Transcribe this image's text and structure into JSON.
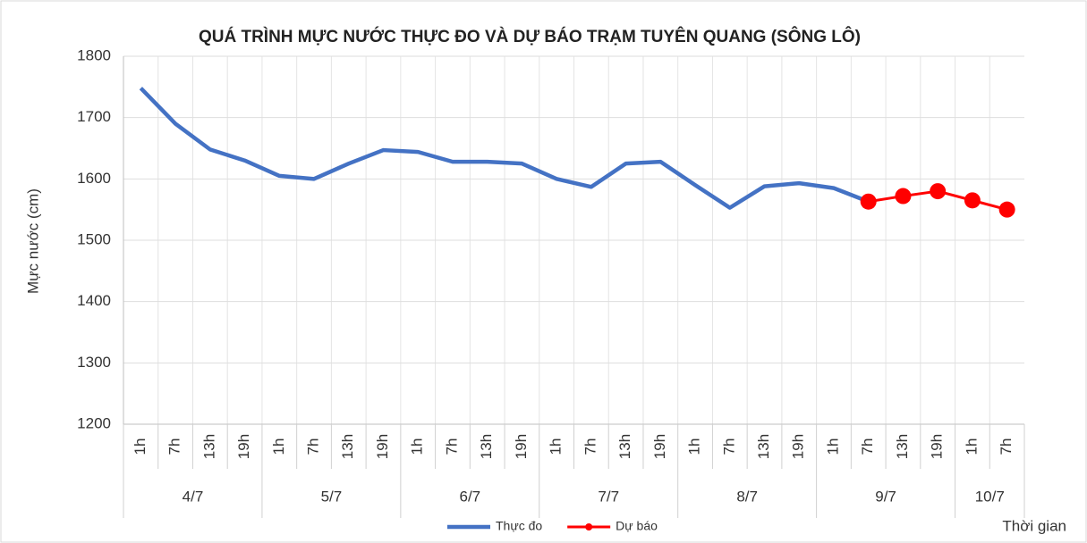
{
  "chart_data": {
    "type": "line",
    "title": "QUÁ TRÌNH MỰC NƯỚC THỰC ĐO VÀ DỰ BÁO TRẠM TUYÊN QUANG (SÔNG LÔ)",
    "ylabel": "Mực nước (cm)",
    "xlabel": "Thời gian",
    "groups": [
      {
        "name": "4/7",
        "categories": [
          "1h",
          "7h",
          "13h",
          "19h"
        ]
      },
      {
        "name": "5/7",
        "categories": [
          "1h",
          "7h",
          "13h",
          "19h"
        ]
      },
      {
        "name": "6/7",
        "categories": [
          "1h",
          "7h",
          "13h",
          "19h"
        ]
      },
      {
        "name": "7/7",
        "categories": [
          "1h",
          "7h",
          "13h",
          "19h"
        ]
      },
      {
        "name": "8/7",
        "categories": [
          "1h",
          "7h",
          "13h",
          "19h"
        ]
      },
      {
        "name": "9/7",
        "categories": [
          "1h",
          "7h",
          "13h",
          "19h"
        ]
      },
      {
        "name": "10/7",
        "categories": [
          "1h",
          "7h"
        ]
      }
    ],
    "series": [
      {
        "name": "Thực đo",
        "color": "#4472c4",
        "markers": false,
        "values": [
          1748,
          1690,
          1648,
          1630,
          1605,
          1600,
          1625,
          1647,
          1644,
          1628,
          1628,
          1625,
          1600,
          1587,
          1625,
          1628,
          1590,
          1553,
          1588,
          1593,
          1585,
          1563,
          null,
          null,
          null,
          null
        ]
      },
      {
        "name": "Dự báo",
        "color": "#ff0000",
        "markers": true,
        "values": [
          null,
          null,
          null,
          null,
          null,
          null,
          null,
          null,
          null,
          null,
          null,
          null,
          null,
          null,
          null,
          null,
          null,
          null,
          null,
          null,
          null,
          1563,
          1572,
          1580,
          1565,
          1550
        ]
      }
    ],
    "ylim": [
      1200,
      1800
    ],
    "yticks": [
      1200,
      1300,
      1400,
      1500,
      1600,
      1700,
      1800
    ],
    "grid": true
  }
}
